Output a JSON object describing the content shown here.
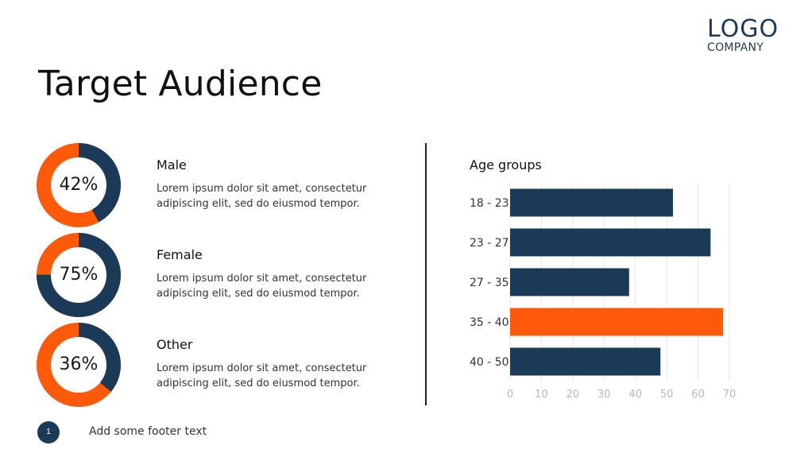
{
  "colors": {
    "navy": "#1b3a57",
    "orange": "#ff5a0a"
  },
  "logo": {
    "line1": "LOGO",
    "line2": "COMPANY"
  },
  "title": "Target Audience",
  "segments": [
    {
      "label": "Male",
      "percent": 42,
      "percent_label": "42%",
      "description": "Lorem ipsum dolor sit amet, consectetur adipiscing elit, sed do eiusmod tempor."
    },
    {
      "label": "Female",
      "percent": 75,
      "percent_label": "75%",
      "description": "Lorem ipsum dolor sit amet, consectetur adipiscing elit, sed do eiusmod tempor."
    },
    {
      "label": "Other",
      "percent": 36,
      "percent_label": "36%",
      "description": "Lorem ipsum dolor sit amet, consectetur adipiscing elit, sed do eiusmod tempor."
    }
  ],
  "chart_data": {
    "type": "bar",
    "orientation": "horizontal",
    "title": "Age groups",
    "categories": [
      "18 - 23",
      "23 - 27",
      "27 - 35",
      "35 - 40",
      "40 - 50"
    ],
    "values": [
      52,
      64,
      38,
      68,
      48
    ],
    "highlight_index": 3,
    "xlim": [
      0,
      70
    ],
    "xticks": [
      0,
      10,
      20,
      30,
      40,
      50,
      60,
      70
    ],
    "grid": true
  },
  "footer": {
    "page_number": "1",
    "text": "Add some footer text"
  }
}
